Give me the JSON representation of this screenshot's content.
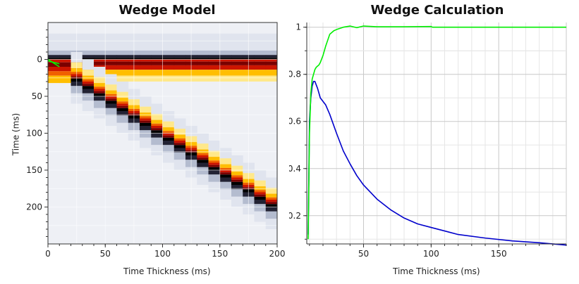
{
  "chart_data": [
    {
      "type": "heatmap",
      "title": "Wedge Model",
      "xlabel": "Time Thickness (ms)",
      "ylabel": "Time (ms)",
      "xlim": [
        0,
        200
      ],
      "ylim": [
        -50,
        250
      ],
      "y_inverted": true,
      "x_ticks": [
        0,
        50,
        100,
        150,
        200
      ],
      "y_ticks": [
        0,
        50,
        100,
        150,
        200
      ],
      "grid": true,
      "wedge": {
        "top_time_ms": 0,
        "base_time_at_max_thickness_ms": 200,
        "colormap": [
          "#ffffff",
          "#e0e4ee",
          "#b4bccf",
          "#222233",
          "#000000",
          "#7a0000",
          "#cc1500",
          "#f06000",
          "#ffbe00",
          "#ffe88a"
        ]
      },
      "overlays": [
        {
          "name": "top horizon",
          "color": "#00ff00",
          "x": [
            0,
            5,
            10
          ],
          "y": [
            2,
            4,
            6
          ]
        },
        {
          "name": "base horizon",
          "color": "#00ff00",
          "x": [
            0,
            5,
            10
          ],
          "y": [
            0,
            5,
            10
          ]
        }
      ]
    },
    {
      "type": "line",
      "title": "Wedge Calculation",
      "xlabel": "Time Thickness (ms)",
      "ylabel": "",
      "xlim": [
        8,
        200
      ],
      "ylim": [
        0.08,
        1.02
      ],
      "x_ticks": [
        50,
        100,
        150
      ],
      "y_ticks": [
        0.2,
        0.4,
        0.6,
        0.8,
        1
      ],
      "grid": true,
      "series": [
        {
          "color": "#0000cc",
          "x": [
            9,
            10,
            11,
            12,
            13,
            14,
            15,
            16,
            17,
            18,
            20,
            22,
            25,
            30,
            35,
            40,
            45,
            50,
            60,
            70,
            80,
            90,
            100,
            110,
            120,
            140,
            160,
            180,
            200
          ],
          "y": [
            0.12,
            0.6,
            0.7,
            0.75,
            0.77,
            0.77,
            0.755,
            0.74,
            0.72,
            0.7,
            0.685,
            0.67,
            0.63,
            0.55,
            0.475,
            0.42,
            0.37,
            0.33,
            0.27,
            0.225,
            0.19,
            0.165,
            0.15,
            0.135,
            0.12,
            0.105,
            0.093,
            0.085,
            0.075
          ]
        },
        {
          "color": "#00ee00",
          "x": [
            9,
            10,
            11,
            12,
            13,
            14,
            15,
            16,
            17,
            18,
            20,
            22,
            25,
            28,
            30,
            35,
            40,
            45,
            50,
            60,
            80,
            100,
            101,
            120,
            150,
            200
          ],
          "y": [
            0.1,
            0.55,
            0.72,
            0.78,
            0.8,
            0.82,
            0.83,
            0.835,
            0.84,
            0.85,
            0.88,
            0.92,
            0.97,
            0.985,
            0.99,
            1.0,
            1.005,
            0.998,
            1.005,
            1.002,
            1.002,
            1.003,
            1.0,
            1.0,
            1.0,
            1.0
          ]
        }
      ]
    }
  ]
}
